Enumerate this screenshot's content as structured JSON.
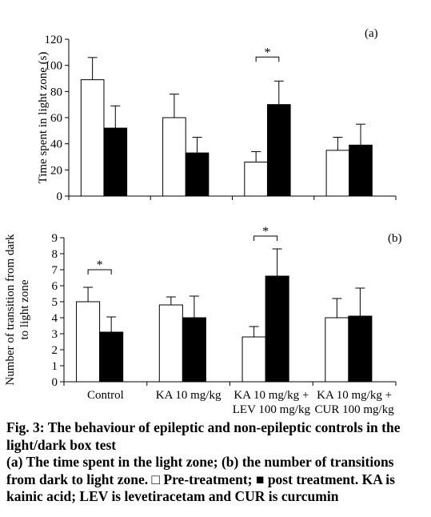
{
  "chart_data": [
    {
      "type": "bar",
      "panel_label": "(a)",
      "ylabel": "Time spent in light zone (s)",
      "ylim": [
        0,
        120
      ],
      "yticks": [
        0,
        20,
        40,
        60,
        80,
        100,
        120
      ],
      "categories": [
        "Control",
        "KA 10 mg/kg",
        "KA 10 mg/kg +\nLEV 100 mg/kg",
        "KA 10 mg/kg +\nCUR 100 mg/kg"
      ],
      "show_category_labels": false,
      "series": [
        {
          "fill": "#ffffff",
          "values": [
            89,
            60,
            26,
            35
          ],
          "errors": [
            17,
            18,
            8,
            10
          ]
        },
        {
          "fill": "#000000",
          "values": [
            52,
            33,
            70,
            39
          ],
          "errors": [
            17,
            12,
            18,
            16
          ]
        }
      ],
      "significance": [
        {
          "label": "*",
          "category": 2
        }
      ]
    },
    {
      "type": "bar",
      "panel_label": "(b)",
      "ylabel": "Number of transition from dark\nto light zone",
      "ylim": [
        0,
        9
      ],
      "yticks": [
        0,
        1,
        2,
        3,
        4,
        5,
        6,
        7,
        8,
        9
      ],
      "categories": [
        "Control",
        "KA 10 mg/kg",
        "KA 10 mg/kg +\nLEV 100 mg/kg",
        "KA 10 mg/kg +\nCUR 100 mg/kg"
      ],
      "show_category_labels": true,
      "series": [
        {
          "fill": "#ffffff",
          "values": [
            5.0,
            4.8,
            2.8,
            4.0
          ],
          "errors": [
            0.9,
            0.5,
            0.65,
            1.2
          ]
        },
        {
          "fill": "#000000",
          "values": [
            3.1,
            4.0,
            6.6,
            4.1
          ],
          "errors": [
            0.95,
            1.35,
            1.7,
            1.75
          ]
        }
      ],
      "significance": [
        {
          "label": "*",
          "category": 0
        },
        {
          "label": "*",
          "category": 2
        }
      ]
    }
  ],
  "caption": {
    "title": "Fig. 3: The behaviour of epileptic and non-epileptic controls in the light/dark box test",
    "body": "(a) The time spent in the light zone; (b) the number of transitions from dark to light zone. □ Pre-treatment; ■ post treatment. KA is kainic acid; LEV is levetiracetam and CUR is curcumin"
  }
}
